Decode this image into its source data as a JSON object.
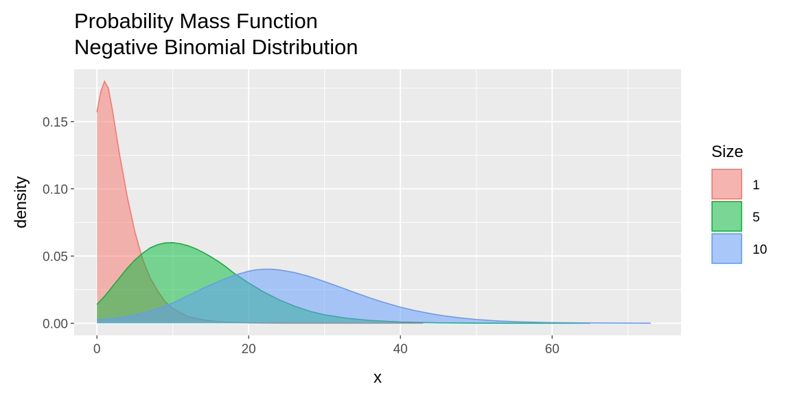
{
  "chart_data": {
    "type": "area",
    "title": "Probability Mass Function",
    "subtitle": "Negative Binomial Distribution",
    "xlabel": "x",
    "ylabel": "density",
    "xlim": [
      -3,
      77
    ],
    "ylim": [
      -0.009,
      0.189
    ],
    "x_ticks": [
      0,
      20,
      40,
      60
    ],
    "y_ticks": [
      0.0,
      0.05,
      0.1,
      0.15
    ],
    "x_tick_labels": [
      "0",
      "20",
      "40",
      "60"
    ],
    "y_tick_labels": [
      "0.00",
      "0.05",
      "0.10",
      "0.15"
    ],
    "grid": true,
    "legend": {
      "title": "Size",
      "position": "right"
    },
    "series": [
      {
        "name": "1",
        "color": "#F8766D",
        "points": [
          [
            0,
            0.157
          ],
          [
            0.5,
            0.172
          ],
          [
            1,
            0.18
          ],
          [
            1.5,
            0.175
          ],
          [
            2,
            0.16
          ],
          [
            3,
            0.125
          ],
          [
            4,
            0.094
          ],
          [
            5,
            0.068
          ],
          [
            6,
            0.048
          ],
          [
            7,
            0.034
          ],
          [
            8,
            0.024
          ],
          [
            9,
            0.016
          ],
          [
            10,
            0.011
          ],
          [
            12,
            0.005
          ],
          [
            14,
            0.0025
          ],
          [
            16,
            0.0012
          ],
          [
            18,
            0.0006
          ],
          [
            20,
            0.0003
          ],
          [
            22,
            0.00014
          ],
          [
            25,
            5e-05
          ],
          [
            30,
            0.0
          ],
          [
            40,
            0.0
          ],
          [
            43,
            0.0
          ]
        ]
      },
      {
        "name": "5",
        "color": "#00BA38",
        "points": [
          [
            0,
            0.014
          ],
          [
            1,
            0.02
          ],
          [
            2,
            0.027
          ],
          [
            3,
            0.034
          ],
          [
            4,
            0.041
          ],
          [
            5,
            0.047
          ],
          [
            6,
            0.052
          ],
          [
            7,
            0.056
          ],
          [
            8,
            0.0585
          ],
          [
            9,
            0.0598
          ],
          [
            10,
            0.06
          ],
          [
            11,
            0.0592
          ],
          [
            12,
            0.0577
          ],
          [
            13,
            0.0555
          ],
          [
            14,
            0.0527
          ],
          [
            15,
            0.0495
          ],
          [
            16,
            0.046
          ],
          [
            17,
            0.042
          ],
          [
            18,
            0.0375
          ],
          [
            20,
            0.03
          ],
          [
            22,
            0.0232
          ],
          [
            24,
            0.0175
          ],
          [
            26,
            0.0128
          ],
          [
            28,
            0.009
          ],
          [
            30,
            0.0063
          ],
          [
            33,
            0.0037
          ],
          [
            36,
            0.0021
          ],
          [
            40,
            0.0009
          ],
          [
            45,
            0.0003
          ],
          [
            50,
            0.0001
          ],
          [
            55,
            0.0
          ],
          [
            65,
            0.0
          ]
        ]
      },
      {
        "name": "10",
        "color": "#619CFF",
        "points": [
          [
            0,
            0.0025
          ],
          [
            2,
            0.0035
          ],
          [
            4,
            0.005
          ],
          [
            6,
            0.0075
          ],
          [
            8,
            0.011
          ],
          [
            10,
            0.015
          ],
          [
            12,
            0.0205
          ],
          [
            14,
            0.026
          ],
          [
            16,
            0.031
          ],
          [
            18,
            0.0355
          ],
          [
            20,
            0.0387
          ],
          [
            21,
            0.0398
          ],
          [
            22,
            0.0402
          ],
          [
            23,
            0.0402
          ],
          [
            24,
            0.0397
          ],
          [
            26,
            0.0378
          ],
          [
            28,
            0.0348
          ],
          [
            30,
            0.031
          ],
          [
            32,
            0.027
          ],
          [
            34,
            0.0228
          ],
          [
            36,
            0.0188
          ],
          [
            38,
            0.0152
          ],
          [
            40,
            0.012
          ],
          [
            42,
            0.0093
          ],
          [
            44,
            0.0071
          ],
          [
            46,
            0.0053
          ],
          [
            48,
            0.0039
          ],
          [
            50,
            0.0028
          ],
          [
            53,
            0.0017
          ],
          [
            56,
            0.001
          ],
          [
            60,
            0.0005
          ],
          [
            65,
            0.0002
          ],
          [
            70,
            0.0001
          ],
          [
            73,
            0.0
          ]
        ]
      }
    ]
  }
}
